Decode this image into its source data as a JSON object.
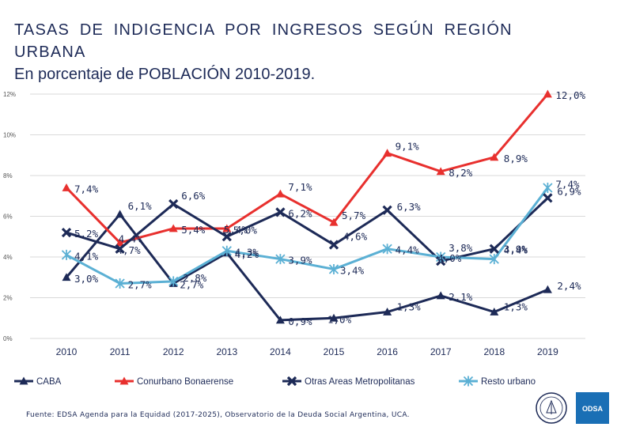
{
  "title": {
    "line1": "TASAS DE INDIGENCIA POR INGRESOS SEGÚN REGIÓN URBANA",
    "line2": "En porcentaje de POBLACIÓN 2010-2019."
  },
  "source": "Fuente: EDSA Agenda para la Equidad (2017-2025), Observatorio de la Deuda Social Argentina, UCA.",
  "logos": {
    "badge_text": "ODSA"
  },
  "chart_data": {
    "type": "line",
    "title": "TASAS DE INDIGENCIA POR INGRESOS SEGÚN REGIÓN URBANA",
    "subtitle": "En porcentaje de POBLACIÓN 2010-2019.",
    "categories": [
      "2010",
      "2011",
      "2012",
      "2013",
      "2014",
      "2015",
      "2016",
      "2017",
      "2018",
      "2019"
    ],
    "ylim": [
      0,
      12
    ],
    "yticks": [
      0,
      2,
      4,
      6,
      8,
      10,
      12
    ],
    "ytick_labels": [
      "0%",
      "2%",
      "4%",
      "6%",
      "8%",
      "10%",
      "12%"
    ],
    "legend_position": "bottom",
    "series": [
      {
        "name": "CABA",
        "color": "#1d2a57",
        "marker": "triangle",
        "values": [
          3.0,
          6.1,
          2.7,
          4.2,
          0.9,
          1.0,
          1.3,
          2.1,
          1.3,
          2.4
        ],
        "labels": [
          "3,0%",
          "6,1%",
          "2,7%",
          "4,2%",
          "0,9%",
          "1,0%",
          "1,3%",
          "2,1%",
          "1,3%",
          "2,4%"
        ]
      },
      {
        "name": "Conurbano Bonaerense",
        "color": "#e8302e",
        "marker": "triangle",
        "values": [
          7.4,
          4.7,
          5.4,
          5.4,
          7.1,
          5.7,
          9.1,
          8.2,
          8.9,
          12.0
        ],
        "labels": [
          "7,4%",
          "4,7%",
          "5,4%",
          "5,4%",
          "7,1%",
          "5,7%",
          "9,1%",
          "8,2%",
          "8,9%",
          "12,0%"
        ]
      },
      {
        "name": "Otras Areas Metropolitanas",
        "color": "#1d2a57",
        "marker": "x",
        "values": [
          5.2,
          4.4,
          6.6,
          5.0,
          6.2,
          4.6,
          6.3,
          3.8,
          4.4,
          6.9
        ],
        "labels": [
          "5,2%",
          "4,4%",
          "6,6%",
          "5,0%",
          "6,2%",
          "4,6%",
          "6,3%",
          "3,8%",
          "4,4%",
          "6,9%"
        ]
      },
      {
        "name": "Resto urbano",
        "color": "#5bb0d4",
        "marker": "star",
        "values": [
          4.1,
          2.7,
          2.8,
          4.3,
          3.9,
          3.4,
          4.4,
          4.0,
          3.9,
          7.4
        ],
        "labels": [
          "4,1%",
          "2,7%",
          "2,8%",
          "4,3%",
          "3,9%",
          "3,4%",
          "4,4%",
          "4,0%",
          "3,9%",
          "7,4%"
        ]
      }
    ]
  }
}
